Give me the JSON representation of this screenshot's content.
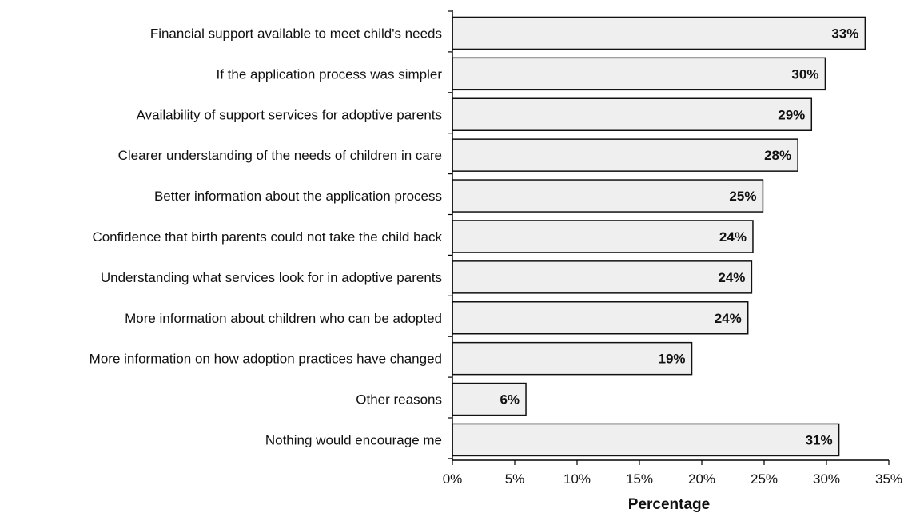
{
  "chart_data": {
    "type": "bar",
    "orientation": "horizontal",
    "categories": [
      "Financial support available to meet child's needs",
      "If the application process was simpler",
      "Availability of support services for adoptive parents",
      "Clearer understanding of the needs of children in care",
      "Better information about the application process",
      "Confidence that birth parents could not take the child back",
      "Understanding what services look for in adoptive parents",
      "More information about children who can be adopted",
      "More information on how adoption practices have changed",
      "Other reasons",
      "Nothing would encourage me"
    ],
    "values": [
      33.1,
      29.9,
      28.8,
      27.7,
      24.9,
      24.1,
      24.0,
      23.7,
      19.2,
      5.9,
      31.0
    ],
    "value_labels": [
      "33%",
      "30%",
      "29%",
      "28%",
      "25%",
      "24%",
      "24%",
      "24%",
      "19%",
      "6%",
      "31%"
    ],
    "xlabel": "Percentage",
    "ylabel": "",
    "xlim": [
      0,
      35
    ],
    "x_ticks": [
      0,
      5,
      10,
      15,
      20,
      25,
      30,
      35
    ],
    "x_tick_labels": [
      "0%",
      "5%",
      "10%",
      "15%",
      "20%",
      "25%",
      "30%",
      "35%"
    ],
    "grid": false,
    "legend": "none",
    "colors": {
      "bar_fill": "#efefef",
      "bar_stroke": "#111111",
      "axis": "#000000",
      "text": "#111111"
    }
  }
}
